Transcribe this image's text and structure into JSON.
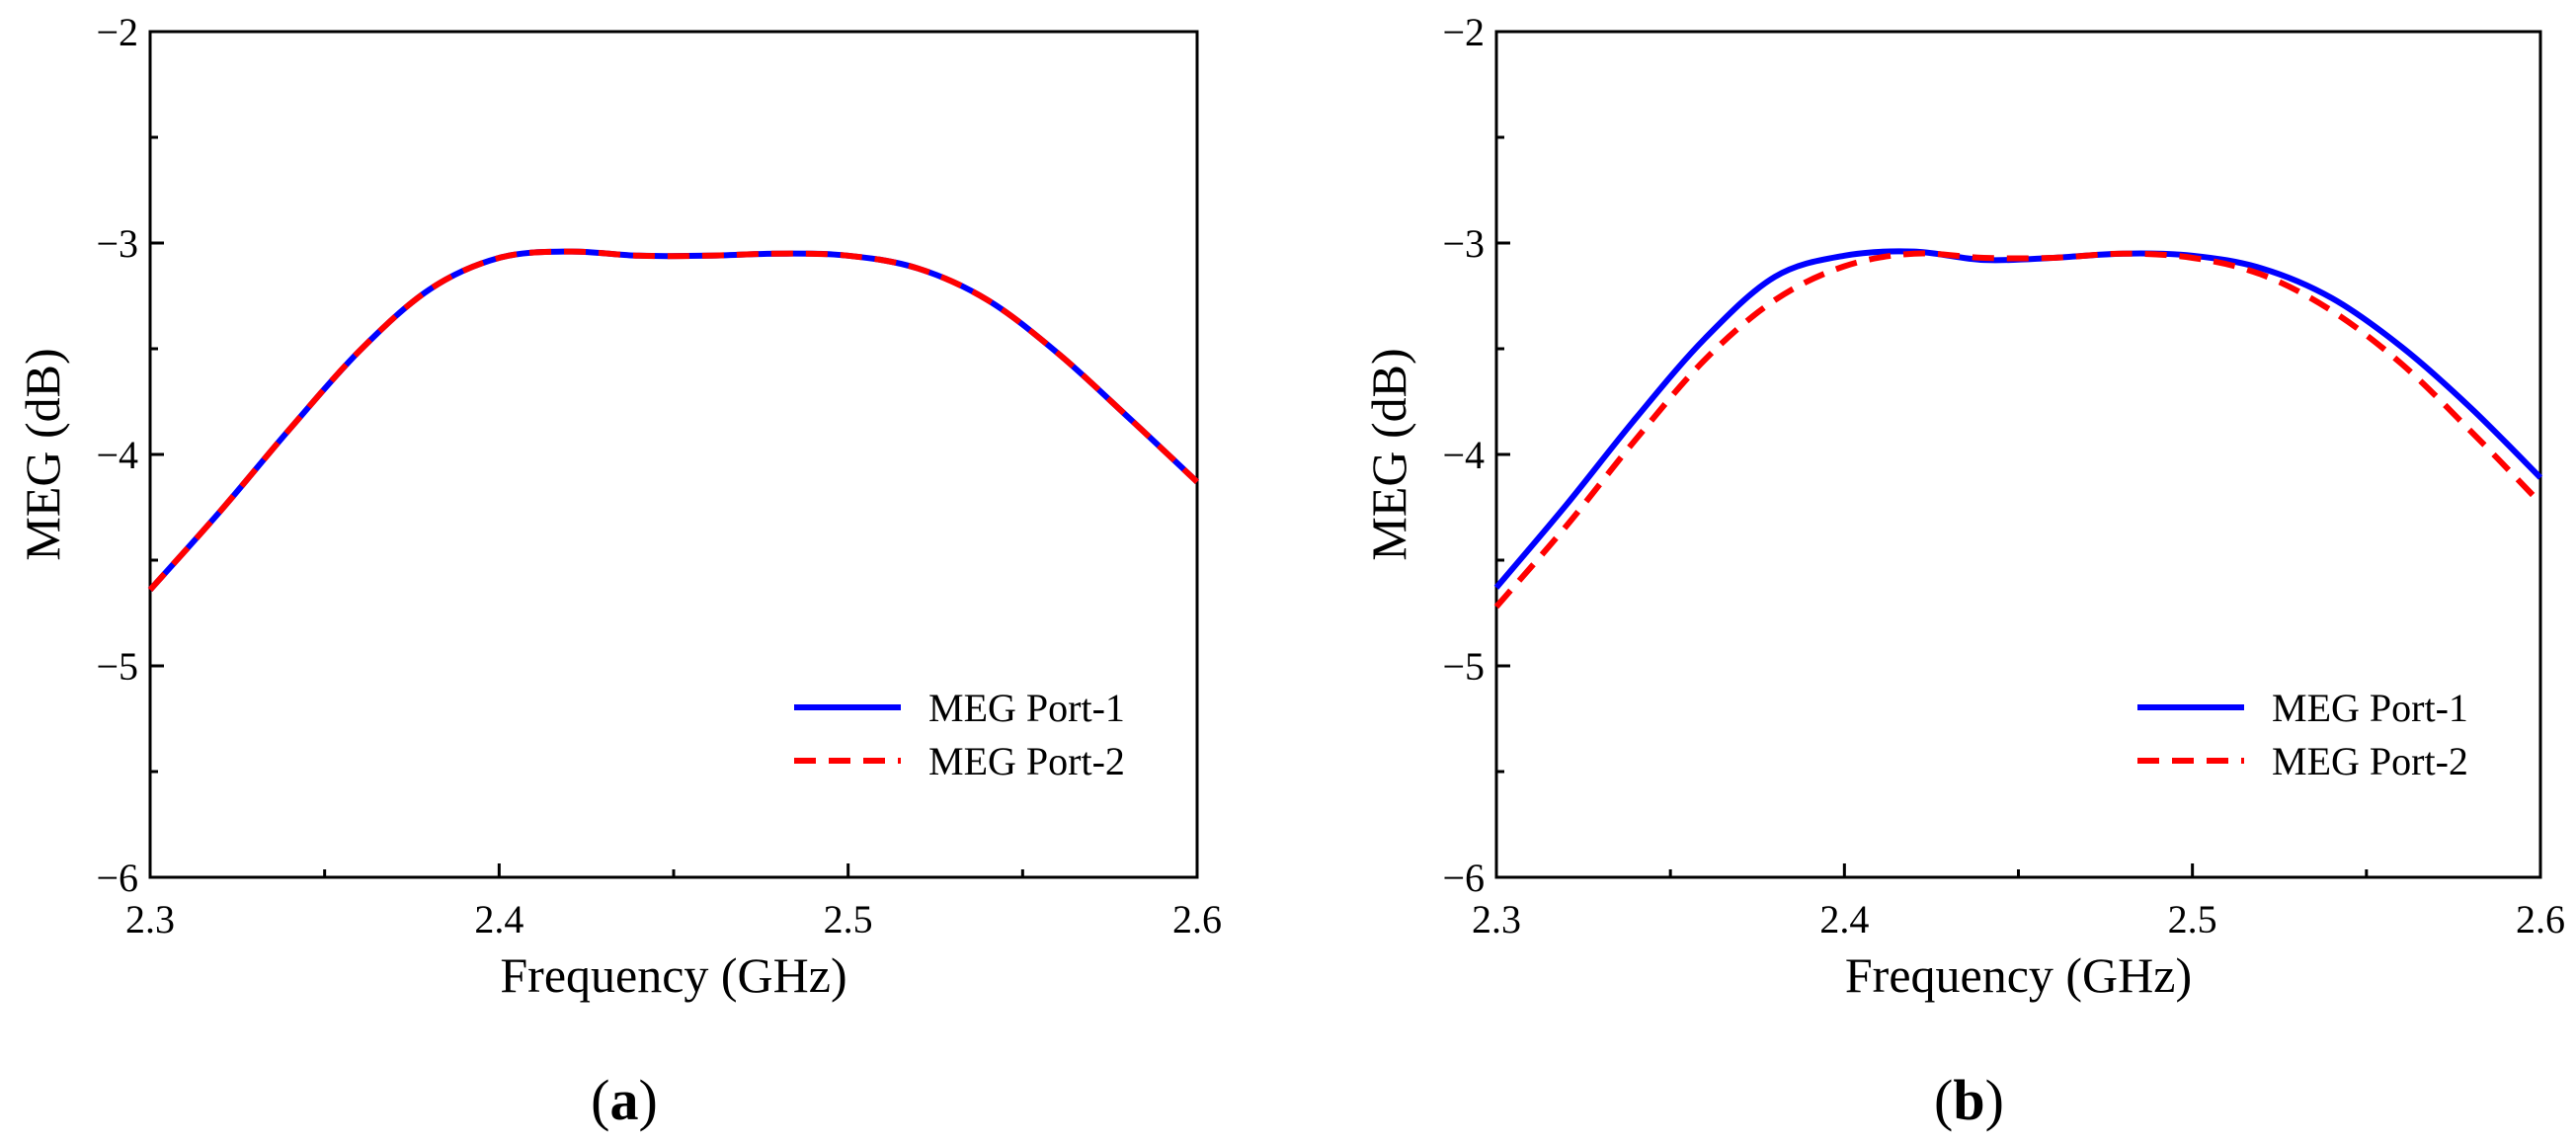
{
  "chart_data": [
    {
      "type": "line",
      "panel_label": "a",
      "xlabel": "Frequency (GHz)",
      "ylabel": "MEG (dB)",
      "xlim": [
        2.3,
        2.6
      ],
      "ylim": [
        -6,
        -2
      ],
      "xticks": [
        2.3,
        2.4,
        2.5,
        2.6
      ],
      "xtick_labels": [
        "2.3",
        "2.4",
        "2.5",
        "2.6"
      ],
      "yticks": [
        -6,
        -5,
        -4,
        -3,
        -2
      ],
      "ytick_labels": [
        "−6",
        "−5",
        "−4",
        "−3",
        "−2"
      ],
      "legend_position": "bottom-right",
      "series": [
        {
          "name": "MEG Port-1",
          "color": "#0000ff",
          "style": "solid",
          "x": [
            2.3,
            2.32,
            2.34,
            2.36,
            2.38,
            2.4,
            2.42,
            2.44,
            2.46,
            2.48,
            2.5,
            2.52,
            2.54,
            2.56,
            2.58,
            2.6
          ],
          "y": [
            -4.64,
            -4.27,
            -3.88,
            -3.51,
            -3.22,
            -3.07,
            -3.04,
            -3.06,
            -3.06,
            -3.05,
            -3.06,
            -3.12,
            -3.27,
            -3.52,
            -3.82,
            -4.13
          ]
        },
        {
          "name": "MEG Port-2",
          "color": "#ff0000",
          "style": "dashed",
          "x": [
            2.3,
            2.32,
            2.34,
            2.36,
            2.38,
            2.4,
            2.42,
            2.44,
            2.46,
            2.48,
            2.5,
            2.52,
            2.54,
            2.56,
            2.58,
            2.6
          ],
          "y": [
            -4.64,
            -4.27,
            -3.88,
            -3.51,
            -3.22,
            -3.07,
            -3.04,
            -3.06,
            -3.06,
            -3.05,
            -3.06,
            -3.12,
            -3.27,
            -3.52,
            -3.82,
            -4.13
          ]
        }
      ]
    },
    {
      "type": "line",
      "panel_label": "b",
      "xlabel": "Frequency (GHz)",
      "ylabel": "MEG (dB)",
      "xlim": [
        2.3,
        2.6
      ],
      "ylim": [
        -6,
        -2
      ],
      "xticks": [
        2.3,
        2.4,
        2.5,
        2.6
      ],
      "xtick_labels": [
        "2.3",
        "2.4",
        "2.5",
        "2.6"
      ],
      "yticks": [
        -6,
        -5,
        -4,
        -3,
        -2
      ],
      "ytick_labels": [
        "−6",
        "−5",
        "−4",
        "−3",
        "−2"
      ],
      "legend_position": "bottom-right",
      "series": [
        {
          "name": "MEG Port-1",
          "color": "#0000ff",
          "style": "solid",
          "x": [
            2.3,
            2.32,
            2.34,
            2.36,
            2.38,
            2.4,
            2.42,
            2.44,
            2.46,
            2.48,
            2.5,
            2.52,
            2.54,
            2.56,
            2.58,
            2.6
          ],
          "y": [
            -4.63,
            -4.24,
            -3.83,
            -3.45,
            -3.16,
            -3.06,
            -3.04,
            -3.08,
            -3.07,
            -3.05,
            -3.06,
            -3.12,
            -3.26,
            -3.49,
            -3.78,
            -4.11
          ]
        },
        {
          "name": "MEG Port-2",
          "color": "#ff0000",
          "style": "dashed",
          "x": [
            2.3,
            2.32,
            2.34,
            2.36,
            2.38,
            2.4,
            2.42,
            2.44,
            2.46,
            2.48,
            2.5,
            2.52,
            2.54,
            2.56,
            2.58,
            2.6
          ],
          "y": [
            -4.72,
            -4.34,
            -3.93,
            -3.55,
            -3.27,
            -3.11,
            -3.05,
            -3.07,
            -3.07,
            -3.05,
            -3.07,
            -3.15,
            -3.32,
            -3.57,
            -3.89,
            -4.23
          ]
        }
      ]
    }
  ]
}
